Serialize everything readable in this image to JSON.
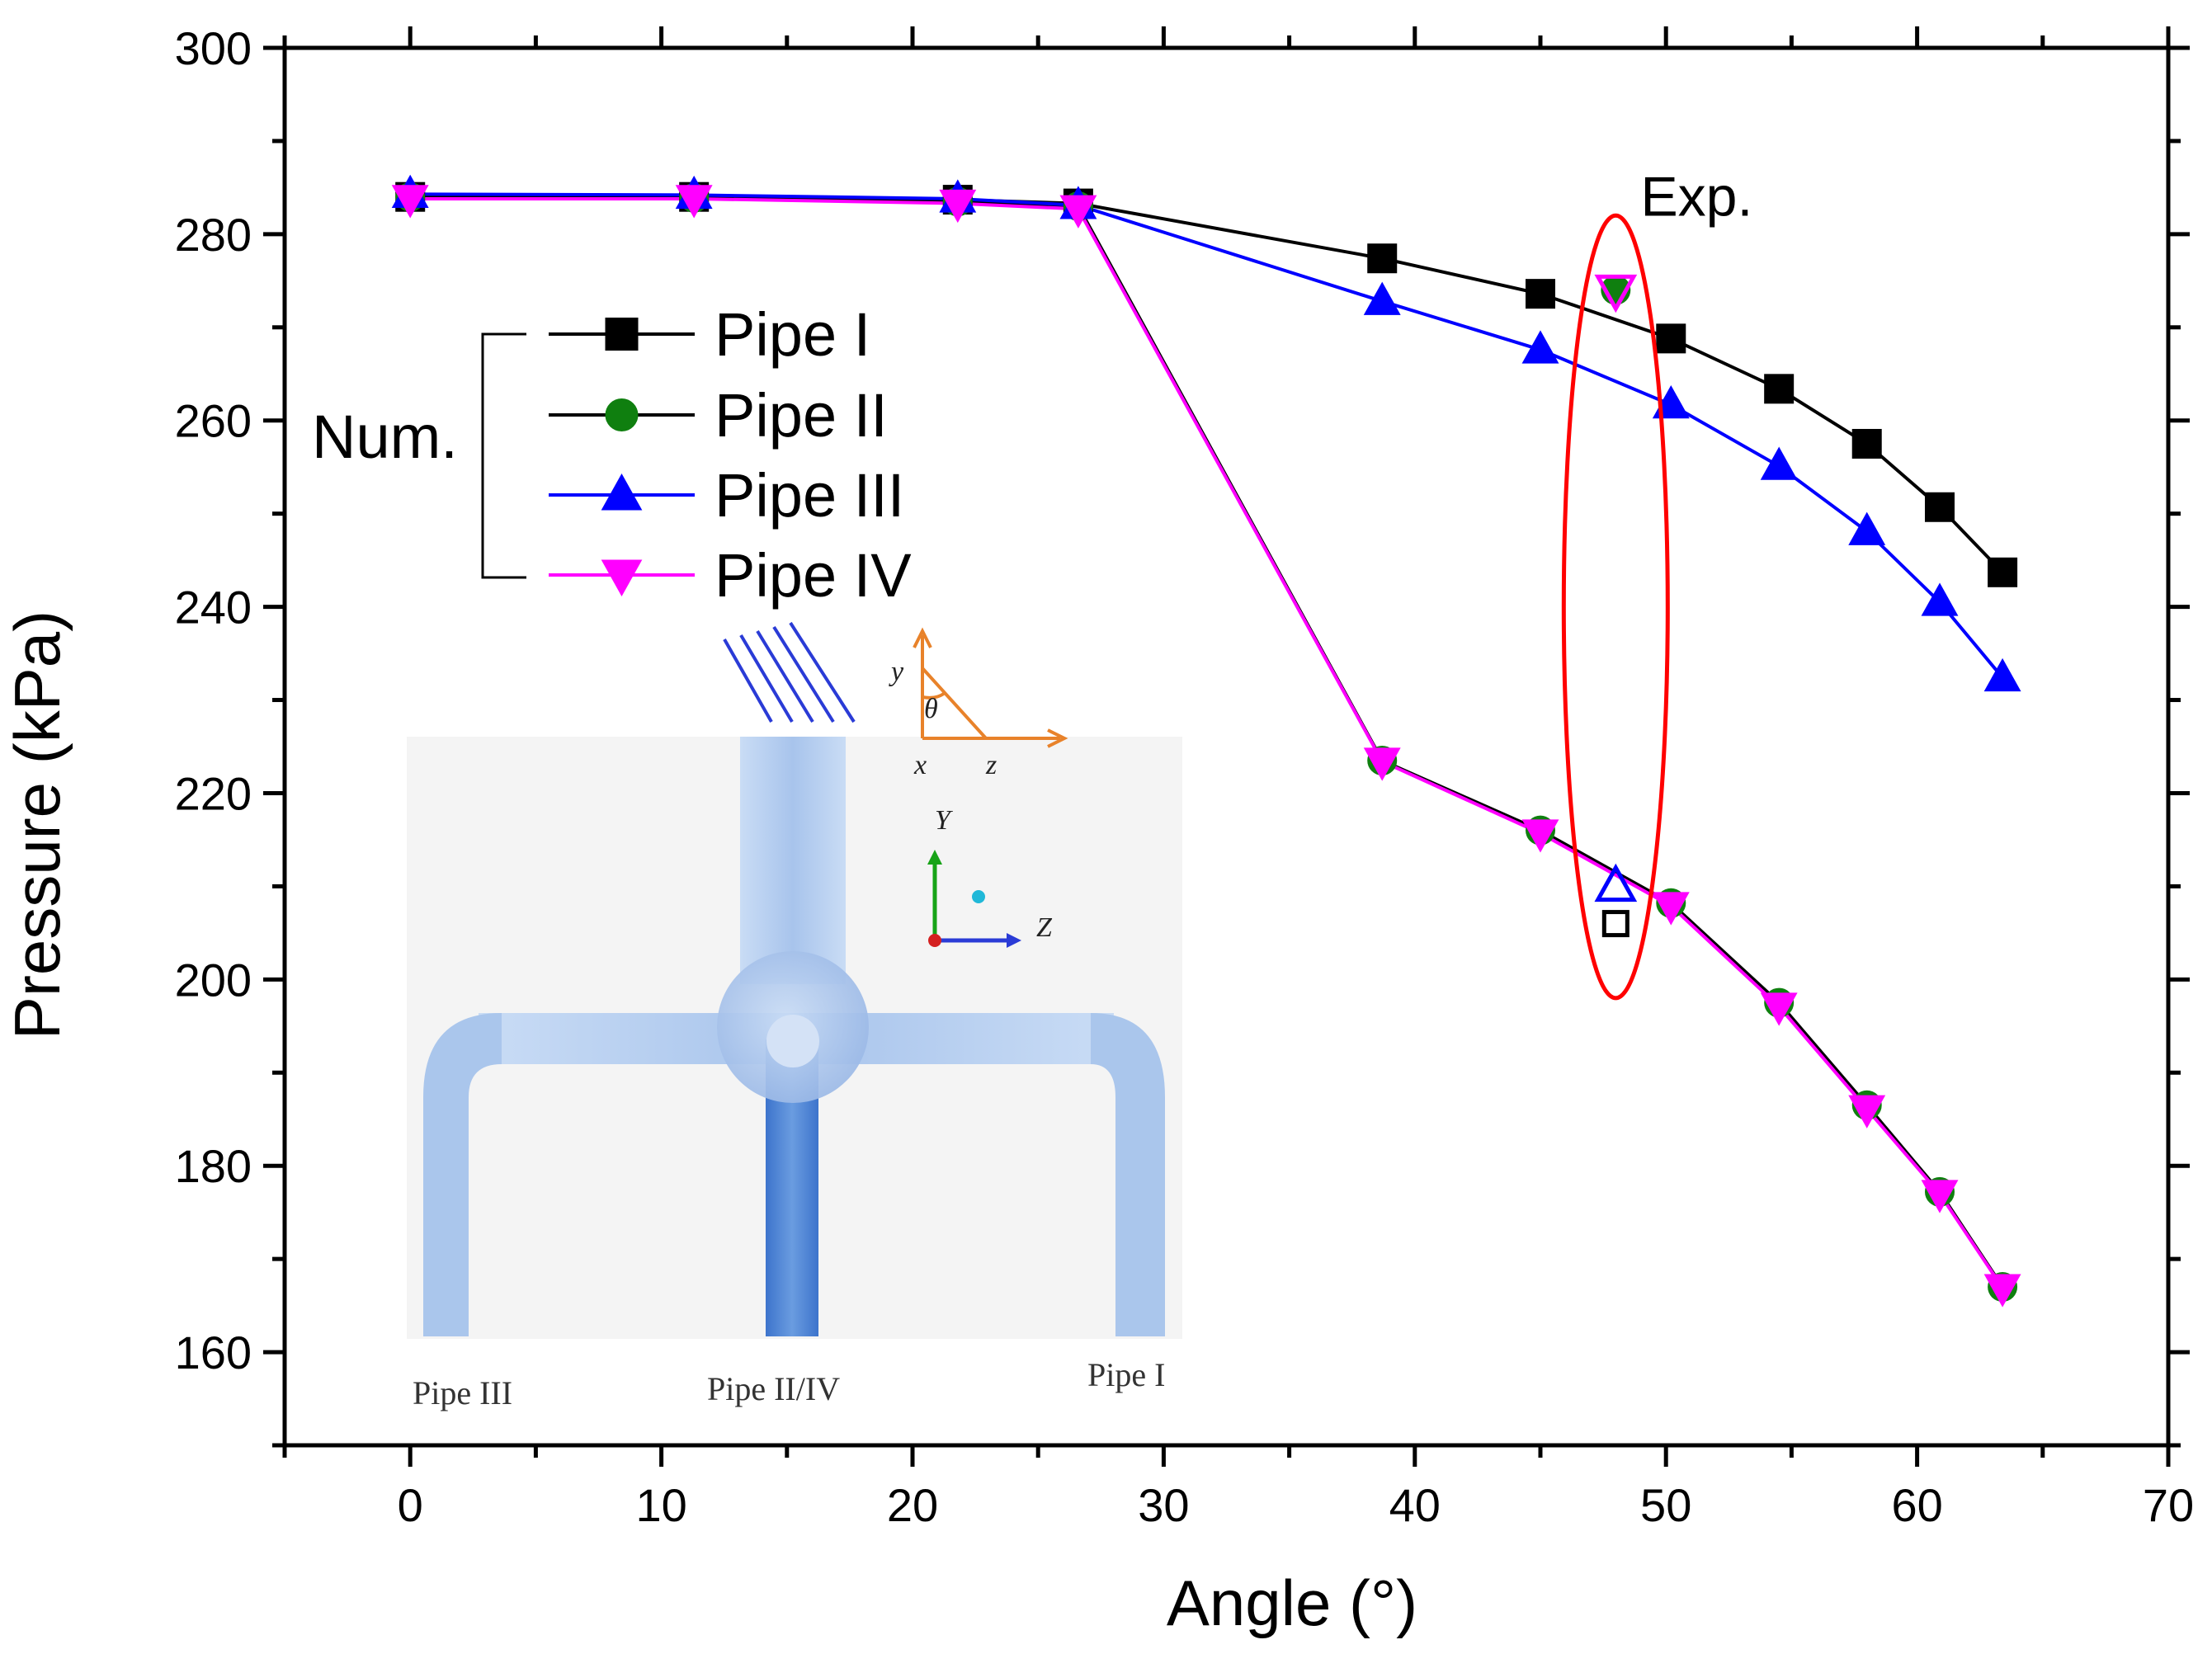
{
  "chart_data": {
    "type": "line",
    "xlabel": "Angle (°)",
    "ylabel": "Pressure (kPa)",
    "xlim": [
      -5,
      70
    ],
    "ylim": [
      150,
      300
    ],
    "xticks": [
      0,
      10,
      20,
      30,
      40,
      50,
      60,
      70
    ],
    "yticks": [
      160,
      180,
      200,
      220,
      240,
      260,
      280,
      300
    ],
    "grid": false,
    "legend": {
      "group_label": "Num.",
      "placement": "upper-left"
    },
    "annotation": "Exp.",
    "series": [
      {
        "name": "Pipe I",
        "marker": "square",
        "color": "#000000",
        "line_color": "#000000",
        "x": [
          0,
          11.3,
          21.8,
          26.6,
          38.7,
          45,
          50.2,
          54.5,
          58,
          60.9,
          63.4
        ],
        "y": [
          284,
          284,
          283.7,
          283.3,
          277.4,
          273.6,
          268.8,
          263.4,
          257.5,
          250.7,
          243.7
        ]
      },
      {
        "name": "Pipe II",
        "marker": "circle",
        "color": "#0f7f0f",
        "line_color": "#000000",
        "x": [
          0,
          11.3,
          21.8,
          26.6,
          38.7,
          45,
          50.2,
          54.5,
          58,
          60.9,
          63.4
        ],
        "y": [
          284,
          283.9,
          283.5,
          283,
          223.5,
          216,
          208.2,
          197.5,
          186.5,
          177.2,
          167
        ]
      },
      {
        "name": "Pipe III",
        "marker": "triangle-up",
        "color": "#0000ff",
        "line_color": "#0000ff",
        "x": [
          0,
          11.3,
          21.8,
          26.6,
          38.7,
          45,
          50.2,
          54.5,
          58,
          60.9,
          63.4
        ],
        "y": [
          284.3,
          284.2,
          283.8,
          283.1,
          272.8,
          267.6,
          261.7,
          255.1,
          248.1,
          240.5,
          232.4
        ]
      },
      {
        "name": "Pipe IV",
        "marker": "triangle-down",
        "color": "#ff00ff",
        "line_color": "#ff00ff",
        "x": [
          0,
          11.3,
          21.8,
          26.6,
          38.7,
          45,
          50.2,
          54.5,
          58,
          60.9,
          63.4
        ],
        "y": [
          283.8,
          283.8,
          283.3,
          282.7,
          223.4,
          215.7,
          207.9,
          197.1,
          186.1,
          177,
          166.9
        ]
      }
    ],
    "experimental": [
      {
        "series": "Pipe I",
        "marker": "square-open",
        "color": "#000000",
        "x": 48,
        "y": 206
      },
      {
        "series": "Pipe II",
        "marker": "circle",
        "color": "#0f7f0f",
        "x": 48,
        "y": 274
      },
      {
        "series": "Pipe III",
        "marker": "triangle-up-open",
        "color": "#0000ff",
        "x": 48,
        "y": 210
      },
      {
        "series": "Pipe IV",
        "marker": "triangle-down-open",
        "color": "#ff00ff",
        "x": 48,
        "y": 274
      }
    ],
    "ellipse_color": "#ff0000"
  },
  "inset": {
    "labels": {
      "pipe_iii": "Pipe III",
      "pipe_ii_iv": "Pipe II/IV",
      "pipe_i": "Pipe I"
    },
    "axes_2d": {
      "y": "y",
      "x": "x",
      "z": "z",
      "theta": "θ"
    },
    "axes_3d": {
      "y": "Y",
      "z": "Z"
    },
    "colors": {
      "pipe": "#a9c6ec",
      "pipe_dark": "#5b8fd8",
      "background": "#f2f2f2",
      "arrows": "#2a3bd6",
      "axes_2d": "#e8822a"
    }
  }
}
